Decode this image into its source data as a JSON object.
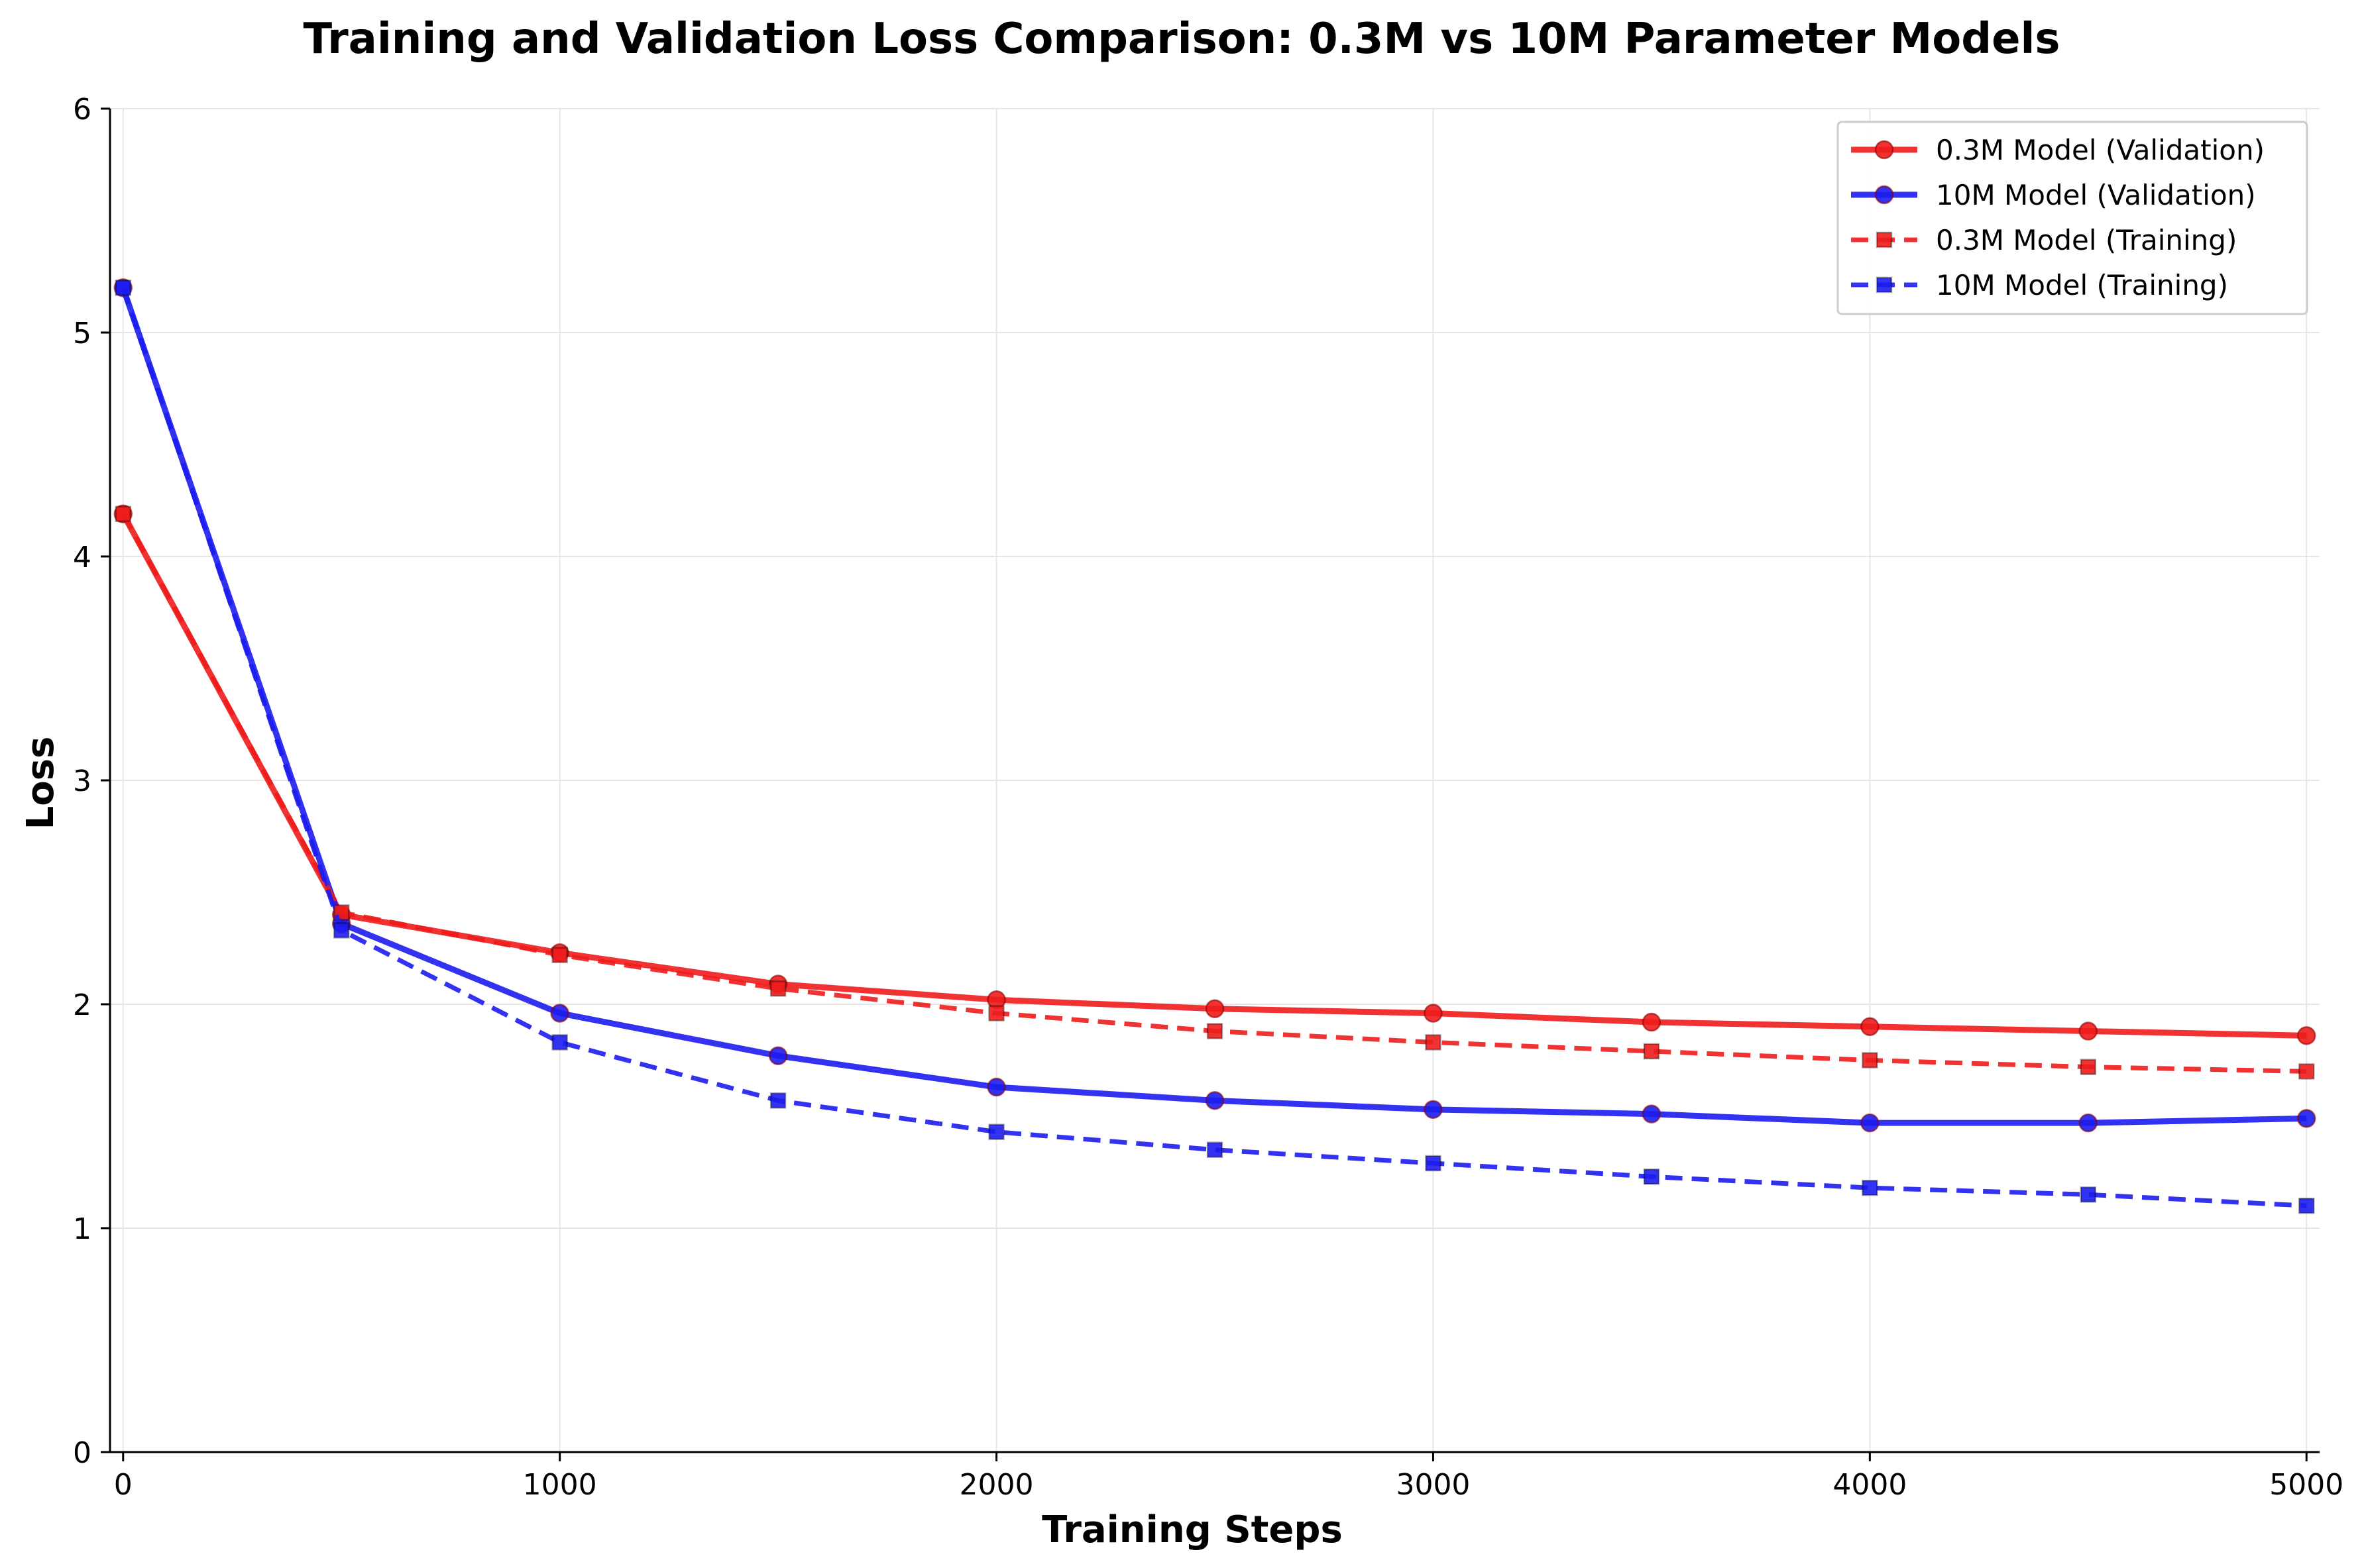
{
  "chart_data": {
    "type": "line",
    "title": "Training and Validation Loss Comparison: 0.3M vs 10M Parameter Models",
    "xlabel": "Training Steps",
    "ylabel": "Loss",
    "xlim": [
      -30,
      5030
    ],
    "ylim": [
      0,
      6
    ],
    "xticks": [
      0,
      1000,
      2000,
      3000,
      4000,
      5000
    ],
    "yticks": [
      0,
      1,
      2,
      3,
      4,
      5,
      6
    ],
    "grid": true,
    "legend_position": "top-right",
    "x": [
      0,
      500,
      1000,
      1500,
      2000,
      2500,
      3000,
      3500,
      4000,
      4500,
      5000
    ],
    "series": [
      {
        "name": "0.3M Model (Validation)",
        "color": "#ee1c1c",
        "line_style": "solid",
        "marker": "circle",
        "values": [
          4.19,
          2.4,
          2.23,
          2.09,
          2.02,
          1.98,
          1.96,
          1.92,
          1.9,
          1.88,
          1.86
        ]
      },
      {
        "name": "10M Model (Validation)",
        "color": "#1c1cee",
        "line_style": "solid",
        "marker": "circle",
        "values": [
          5.2,
          2.36,
          1.96,
          1.77,
          1.63,
          1.57,
          1.53,
          1.51,
          1.47,
          1.47,
          1.49
        ]
      },
      {
        "name": "0.3M Model (Training)",
        "color": "#ee1c1c",
        "line_style": "dashed",
        "marker": "square",
        "values": [
          4.19,
          2.41,
          2.22,
          2.07,
          1.96,
          1.88,
          1.83,
          1.79,
          1.75,
          1.72,
          1.7
        ]
      },
      {
        "name": "10M Model (Training)",
        "color": "#1c1cee",
        "line_style": "dashed",
        "marker": "square",
        "values": [
          5.2,
          2.33,
          1.83,
          1.57,
          1.43,
          1.35,
          1.29,
          1.23,
          1.18,
          1.15,
          1.1
        ]
      }
    ]
  }
}
